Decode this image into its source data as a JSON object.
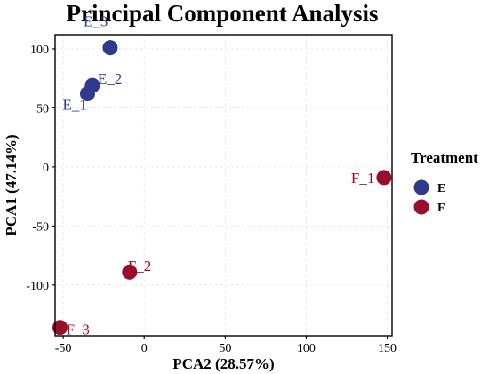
{
  "chart_data": {
    "type": "scatter",
    "title": "Principal Component Analysis",
    "xlabel": "PCA2 (28.57%)",
    "ylabel": "PCA1 (47.14%)",
    "xlim": [
      -55,
      153
    ],
    "ylim": [
      -143,
      112
    ],
    "xticks": [
      -50,
      0,
      50,
      100,
      150
    ],
    "yticks": [
      100,
      50,
      0,
      -50,
      -100
    ],
    "grid": true,
    "legend": {
      "title": "Treatment",
      "placement": "right",
      "entries": [
        {
          "label": "E",
          "color": "#2e3a8c"
        },
        {
          "label": "F",
          "color": "#9b0e2b"
        }
      ]
    },
    "series": [
      {
        "name": "E",
        "color": "#2e3a8c",
        "points": [
          {
            "label": "E_1",
            "x": -35,
            "y": 62
          },
          {
            "label": "E_2",
            "x": -32,
            "y": 69
          },
          {
            "label": "E_3",
            "x": -21,
            "y": 101
          }
        ]
      },
      {
        "name": "F",
        "color": "#9b0e2b",
        "points": [
          {
            "label": "F_1",
            "x": 148,
            "y": -9
          },
          {
            "label": "F_2",
            "x": -9,
            "y": -89
          },
          {
            "label": "F_3",
            "x": -52,
            "y": -136
          }
        ]
      }
    ]
  }
}
